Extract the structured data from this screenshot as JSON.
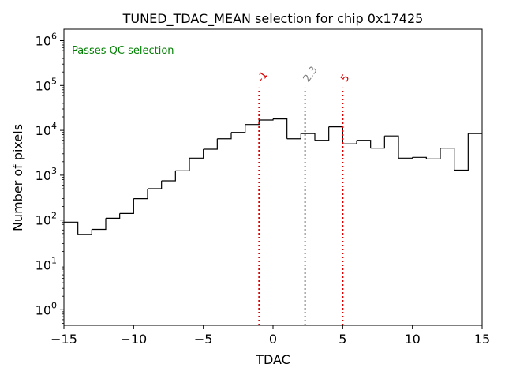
{
  "chart_data": {
    "type": "histogram",
    "title": "TUNED_TDAC_MEAN selection for chip 0x17425",
    "xlabel": "TDAC",
    "ylabel": "Number of pixels",
    "xlim": [
      -15,
      15
    ],
    "ylim": [
      0.45,
      1800000
    ],
    "yscale": "log",
    "grid": false,
    "x_ticks": [
      {
        "value": -15,
        "label": "−15"
      },
      {
        "value": -10,
        "label": "−10"
      },
      {
        "value": -5,
        "label": "−5"
      },
      {
        "value": 0,
        "label": "0"
      },
      {
        "value": 5,
        "label": "5"
      },
      {
        "value": 10,
        "label": "10"
      },
      {
        "value": 15,
        "label": "15"
      }
    ],
    "y_ticks": [
      {
        "value": 1,
        "base": "10",
        "exp": "0"
      },
      {
        "value": 10,
        "base": "10",
        "exp": "1"
      },
      {
        "value": 100,
        "base": "10",
        "exp": "2"
      },
      {
        "value": 1000,
        "base": "10",
        "exp": "3"
      },
      {
        "value": 10000,
        "base": "10",
        "exp": "4"
      },
      {
        "value": 100000,
        "base": "10",
        "exp": "5"
      },
      {
        "value": 1000000,
        "base": "10",
        "exp": "6"
      }
    ],
    "bin_edges": [
      -15,
      -14,
      -13,
      -12,
      -11,
      -10,
      -9,
      -8,
      -7,
      -6,
      -5,
      -4,
      -3,
      -2,
      -1,
      0,
      1,
      2,
      3,
      4,
      5,
      6,
      7,
      8,
      9,
      10,
      11,
      12,
      13,
      14,
      15
    ],
    "counts": [
      90,
      48,
      62,
      110,
      140,
      300,
      500,
      750,
      1250,
      2400,
      3800,
      6500,
      9000,
      13500,
      17000,
      18000,
      6500,
      8500,
      6000,
      12000,
      5000,
      6000,
      4000,
      7500,
      2400,
      2500,
      2300,
      4000,
      1300,
      8500
    ],
    "series_color": "#000000",
    "cut_lines": [
      {
        "x": -1,
        "label": "-1",
        "color": "#e00000",
        "top_value": 90000
      },
      {
        "x": 2.3,
        "label": "2.3",
        "color": "#808080",
        "top_value": 90000
      },
      {
        "x": 5,
        "label": "5",
        "color": "#e00000",
        "top_value": 90000
      }
    ],
    "annotation": {
      "text": "Passes QC selection",
      "color": "#008000"
    }
  }
}
